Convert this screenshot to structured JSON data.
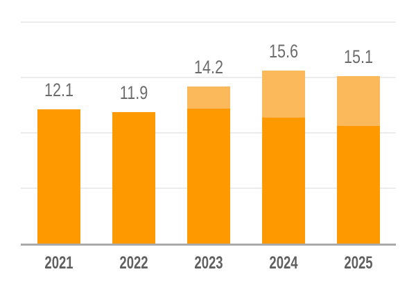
{
  "chart_data": {
    "type": "bar",
    "stacked": true,
    "title": "",
    "xlabel": "",
    "ylabel": "",
    "categories": [
      "2021",
      "2022",
      "2023",
      "2024",
      "2025"
    ],
    "series": [
      {
        "name": "base-segment",
        "color": "#ff9900",
        "values": [
          12.1,
          11.9,
          12.2,
          11.4,
          10.6
        ]
      },
      {
        "name": "upper-segment",
        "color": "#fcb95b",
        "values": [
          0,
          0,
          2.0,
          4.2,
          4.5
        ]
      }
    ],
    "totals": [
      12.1,
      11.9,
      14.2,
      15.6,
      15.1
    ],
    "data_labels": [
      "12.1",
      "11.9",
      "14.2",
      "15.6",
      "15.1"
    ],
    "ylim": [
      0,
      20
    ],
    "gridline_values": [
      5,
      10,
      15,
      20
    ],
    "grid": true,
    "legend": false,
    "y_tick_labels_visible": false,
    "styles": {
      "background": "#ffffff",
      "grid_color": "#ebebeb",
      "axis_color": "#a9a9a9",
      "value_label_color": "#6b6b6b",
      "category_label_color": "#5f5f5f"
    }
  }
}
